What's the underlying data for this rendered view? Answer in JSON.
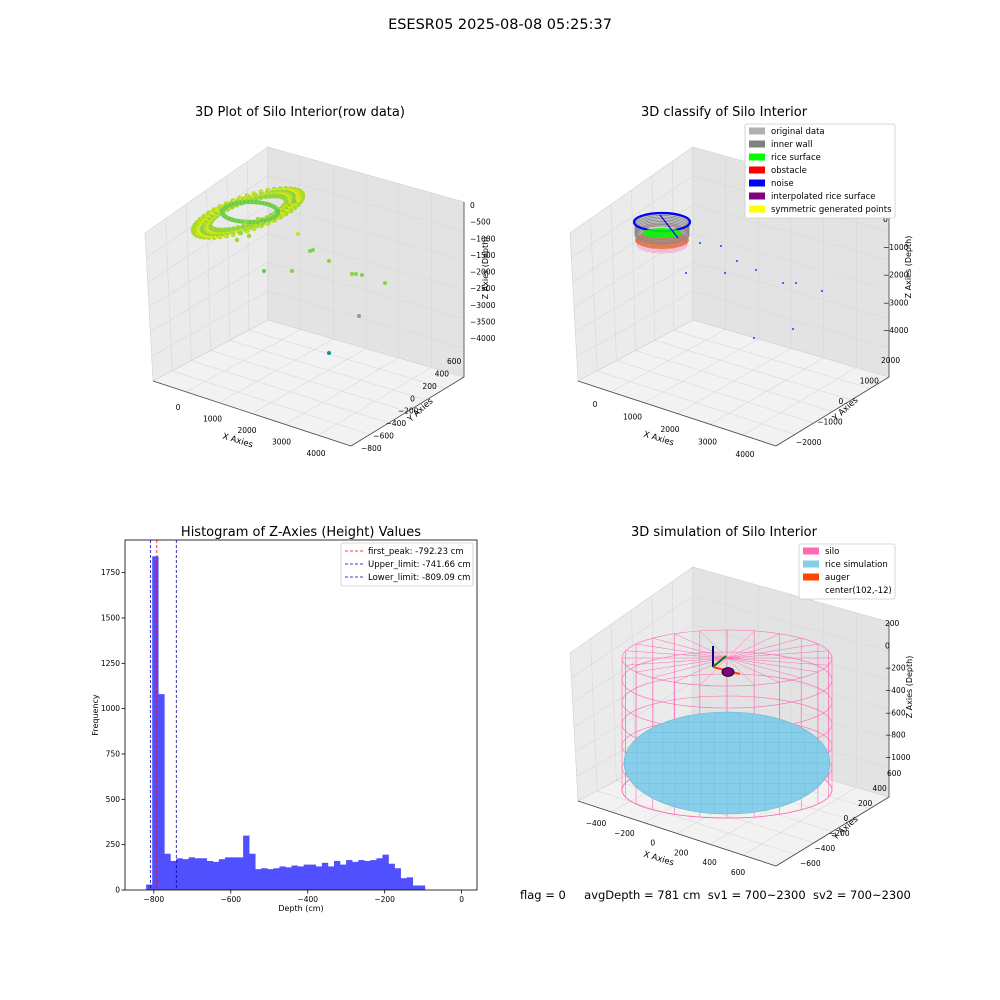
{
  "figure": {
    "suptitle": "ESESR05 2025-08-08 05:25:37",
    "footer": {
      "flag": "flag = 0",
      "avg_depth": "avgDepth = 781 cm",
      "sv1": "sv1 = 700~2300",
      "sv2": "sv2 = 700~2300"
    }
  },
  "colors": {
    "hist_bar": "#5050ff",
    "first_peak": "#ff0000",
    "limit_lines": "#0000aa",
    "silo": "#ff69b4",
    "rice_simulation": "#87ceeb",
    "auger": "#ff4500",
    "raw_points_low": "#1a8f8f",
    "raw_points_high": "#e8f000"
  },
  "chart_data": [
    {
      "id": "raw",
      "type": "scatter",
      "projection": "3d",
      "title": "3D Plot of Silo Interior(row data)",
      "xlabel": "X Axies",
      "ylabel": "Y Axies",
      "zlabel": "Z Axies (Depth)",
      "x_ticks": [
        "0",
        "1000",
        "2000",
        "3000",
        "4000"
      ],
      "y_ticks": [
        "600",
        "400",
        "200",
        "0",
        "−200",
        "−400",
        "−600",
        "−800"
      ],
      "z_ticks": [
        "0",
        "−500",
        "−1000",
        "−1500",
        "−2000",
        "−2500",
        "−3000",
        "−3500",
        "−4000"
      ],
      "grid": true,
      "colormap": "viridis"
    },
    {
      "id": "classify",
      "type": "scatter",
      "projection": "3d",
      "title": "3D classify of Silo Interior",
      "xlabel": "X Axies",
      "ylabel": "Y Axies",
      "zlabel": "Z Axies (Depth)",
      "x_ticks": [
        "0",
        "1000",
        "2000",
        "3000",
        "4000"
      ],
      "y_ticks": [
        "2000",
        "1000",
        "0",
        "−1000",
        "−2000"
      ],
      "z_ticks": [
        "0",
        "−1000",
        "−2000",
        "−3000",
        "−4000"
      ],
      "grid": true,
      "legend_position": "top-right",
      "legend": [
        {
          "label": "original data",
          "color": "#b0b0b0"
        },
        {
          "label": "inner wall",
          "color": "#808080"
        },
        {
          "label": "rice surface",
          "color": "#00ff00"
        },
        {
          "label": "obstacle",
          "color": "#ff0000"
        },
        {
          "label": "noise",
          "color": "#0000ff"
        },
        {
          "label": "interpolated rice surface",
          "color": "#800080"
        },
        {
          "label": "symmetric generated points",
          "color": "#ffff00"
        }
      ]
    },
    {
      "id": "histogram",
      "type": "bar",
      "title": "Histogram of Z-Axies (Height) Values",
      "xlabel": "Depth (cm)",
      "ylabel": "Frequency",
      "xlim": [
        -875,
        40
      ],
      "ylim": [
        0,
        1930
      ],
      "x_ticks": [
        -800,
        -600,
        -400,
        -200,
        0
      ],
      "x_tick_labels": [
        "−800",
        "−600",
        "−400",
        "−200",
        "0"
      ],
      "y_ticks": [
        0,
        250,
        500,
        750,
        1000,
        1250,
        1500,
        1750
      ],
      "bin_start": -820,
      "bin_width": 15.75,
      "counts": [
        30,
        1840,
        1080,
        200,
        160,
        175,
        170,
        180,
        175,
        175,
        160,
        155,
        170,
        180,
        180,
        180,
        300,
        200,
        115,
        120,
        115,
        120,
        130,
        125,
        135,
        130,
        140,
        140,
        130,
        150,
        130,
        160,
        140,
        165,
        155,
        165,
        160,
        165,
        175,
        195,
        145,
        120,
        65,
        70,
        25,
        25
      ],
      "vlines": [
        {
          "value": -792.23,
          "label": "first_peak: -792.23 cm",
          "color": "#ff0000"
        },
        {
          "value": -741.66,
          "label": "Upper_limit: -741.66 cm",
          "color": "#0000aa"
        },
        {
          "value": -809.09,
          "label": "Lower_limit: -809.09 cm",
          "color": "#0000aa"
        }
      ],
      "legend_position": "top-right",
      "grid": false
    },
    {
      "id": "simulation",
      "type": "scatter",
      "projection": "3d",
      "title": "3D simulation of Silo Interior",
      "xlabel": "X Axies",
      "ylabel": "Y Axies",
      "zlabel": "Z Axies (Depth)",
      "x_ticks": [
        "−400",
        "−200",
        "0",
        "200",
        "400",
        "600"
      ],
      "y_ticks": [
        "600",
        "400",
        "200",
        "0",
        "−200",
        "−400",
        "−600"
      ],
      "z_ticks": [
        "200",
        "0",
        "−200",
        "−400",
        "−600",
        "−800",
        "−1000"
      ],
      "grid": true,
      "legend_position": "top-right",
      "legend": [
        {
          "label": "silo",
          "color": "#ff69b4"
        },
        {
          "label": "rice simulation",
          "color": "#87ceeb"
        },
        {
          "label": "auger",
          "color": "#ff4500"
        },
        {
          "label": "center(102,-12)",
          "color": ""
        }
      ]
    }
  ]
}
